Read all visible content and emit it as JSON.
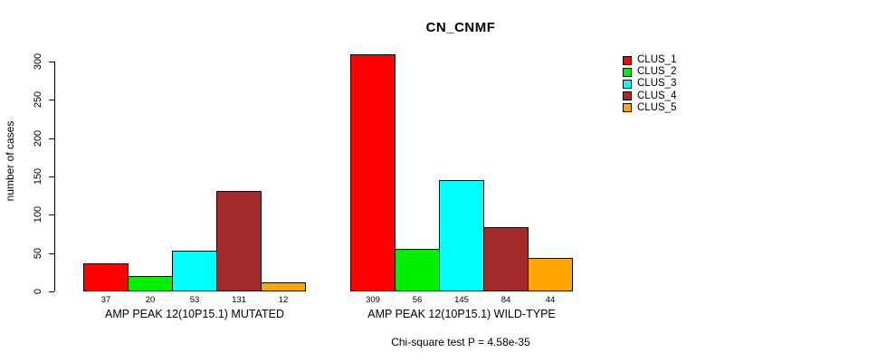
{
  "chart_data": {
    "type": "bar",
    "title": "CN_CNMF",
    "ylabel": "number of cases",
    "xlabel": "",
    "ylim": [
      0,
      300
    ],
    "yticks": [
      0,
      50,
      100,
      150,
      200,
      250,
      300
    ],
    "grid": false,
    "legend_position": "top-right",
    "series": [
      {
        "name": "CLUS_1",
        "color": "#FF0000"
      },
      {
        "name": "CLUS_2",
        "color": "#00EE00"
      },
      {
        "name": "CLUS_3",
        "color": "#00FFFF"
      },
      {
        "name": "CLUS_4",
        "color": "#A52A2A"
      },
      {
        "name": "CLUS_5",
        "color": "#FFA500"
      }
    ],
    "groups": [
      {
        "label": "AMP PEAK 12(10P15.1) MUTATED",
        "values": [
          37,
          20,
          53,
          131,
          12
        ]
      },
      {
        "label": "AMP PEAK 12(10P15.1) WILD-TYPE",
        "values": [
          309,
          56,
          145,
          84,
          44
        ]
      }
    ],
    "annotation": "Chi-square test P = 4.58e-35"
  }
}
